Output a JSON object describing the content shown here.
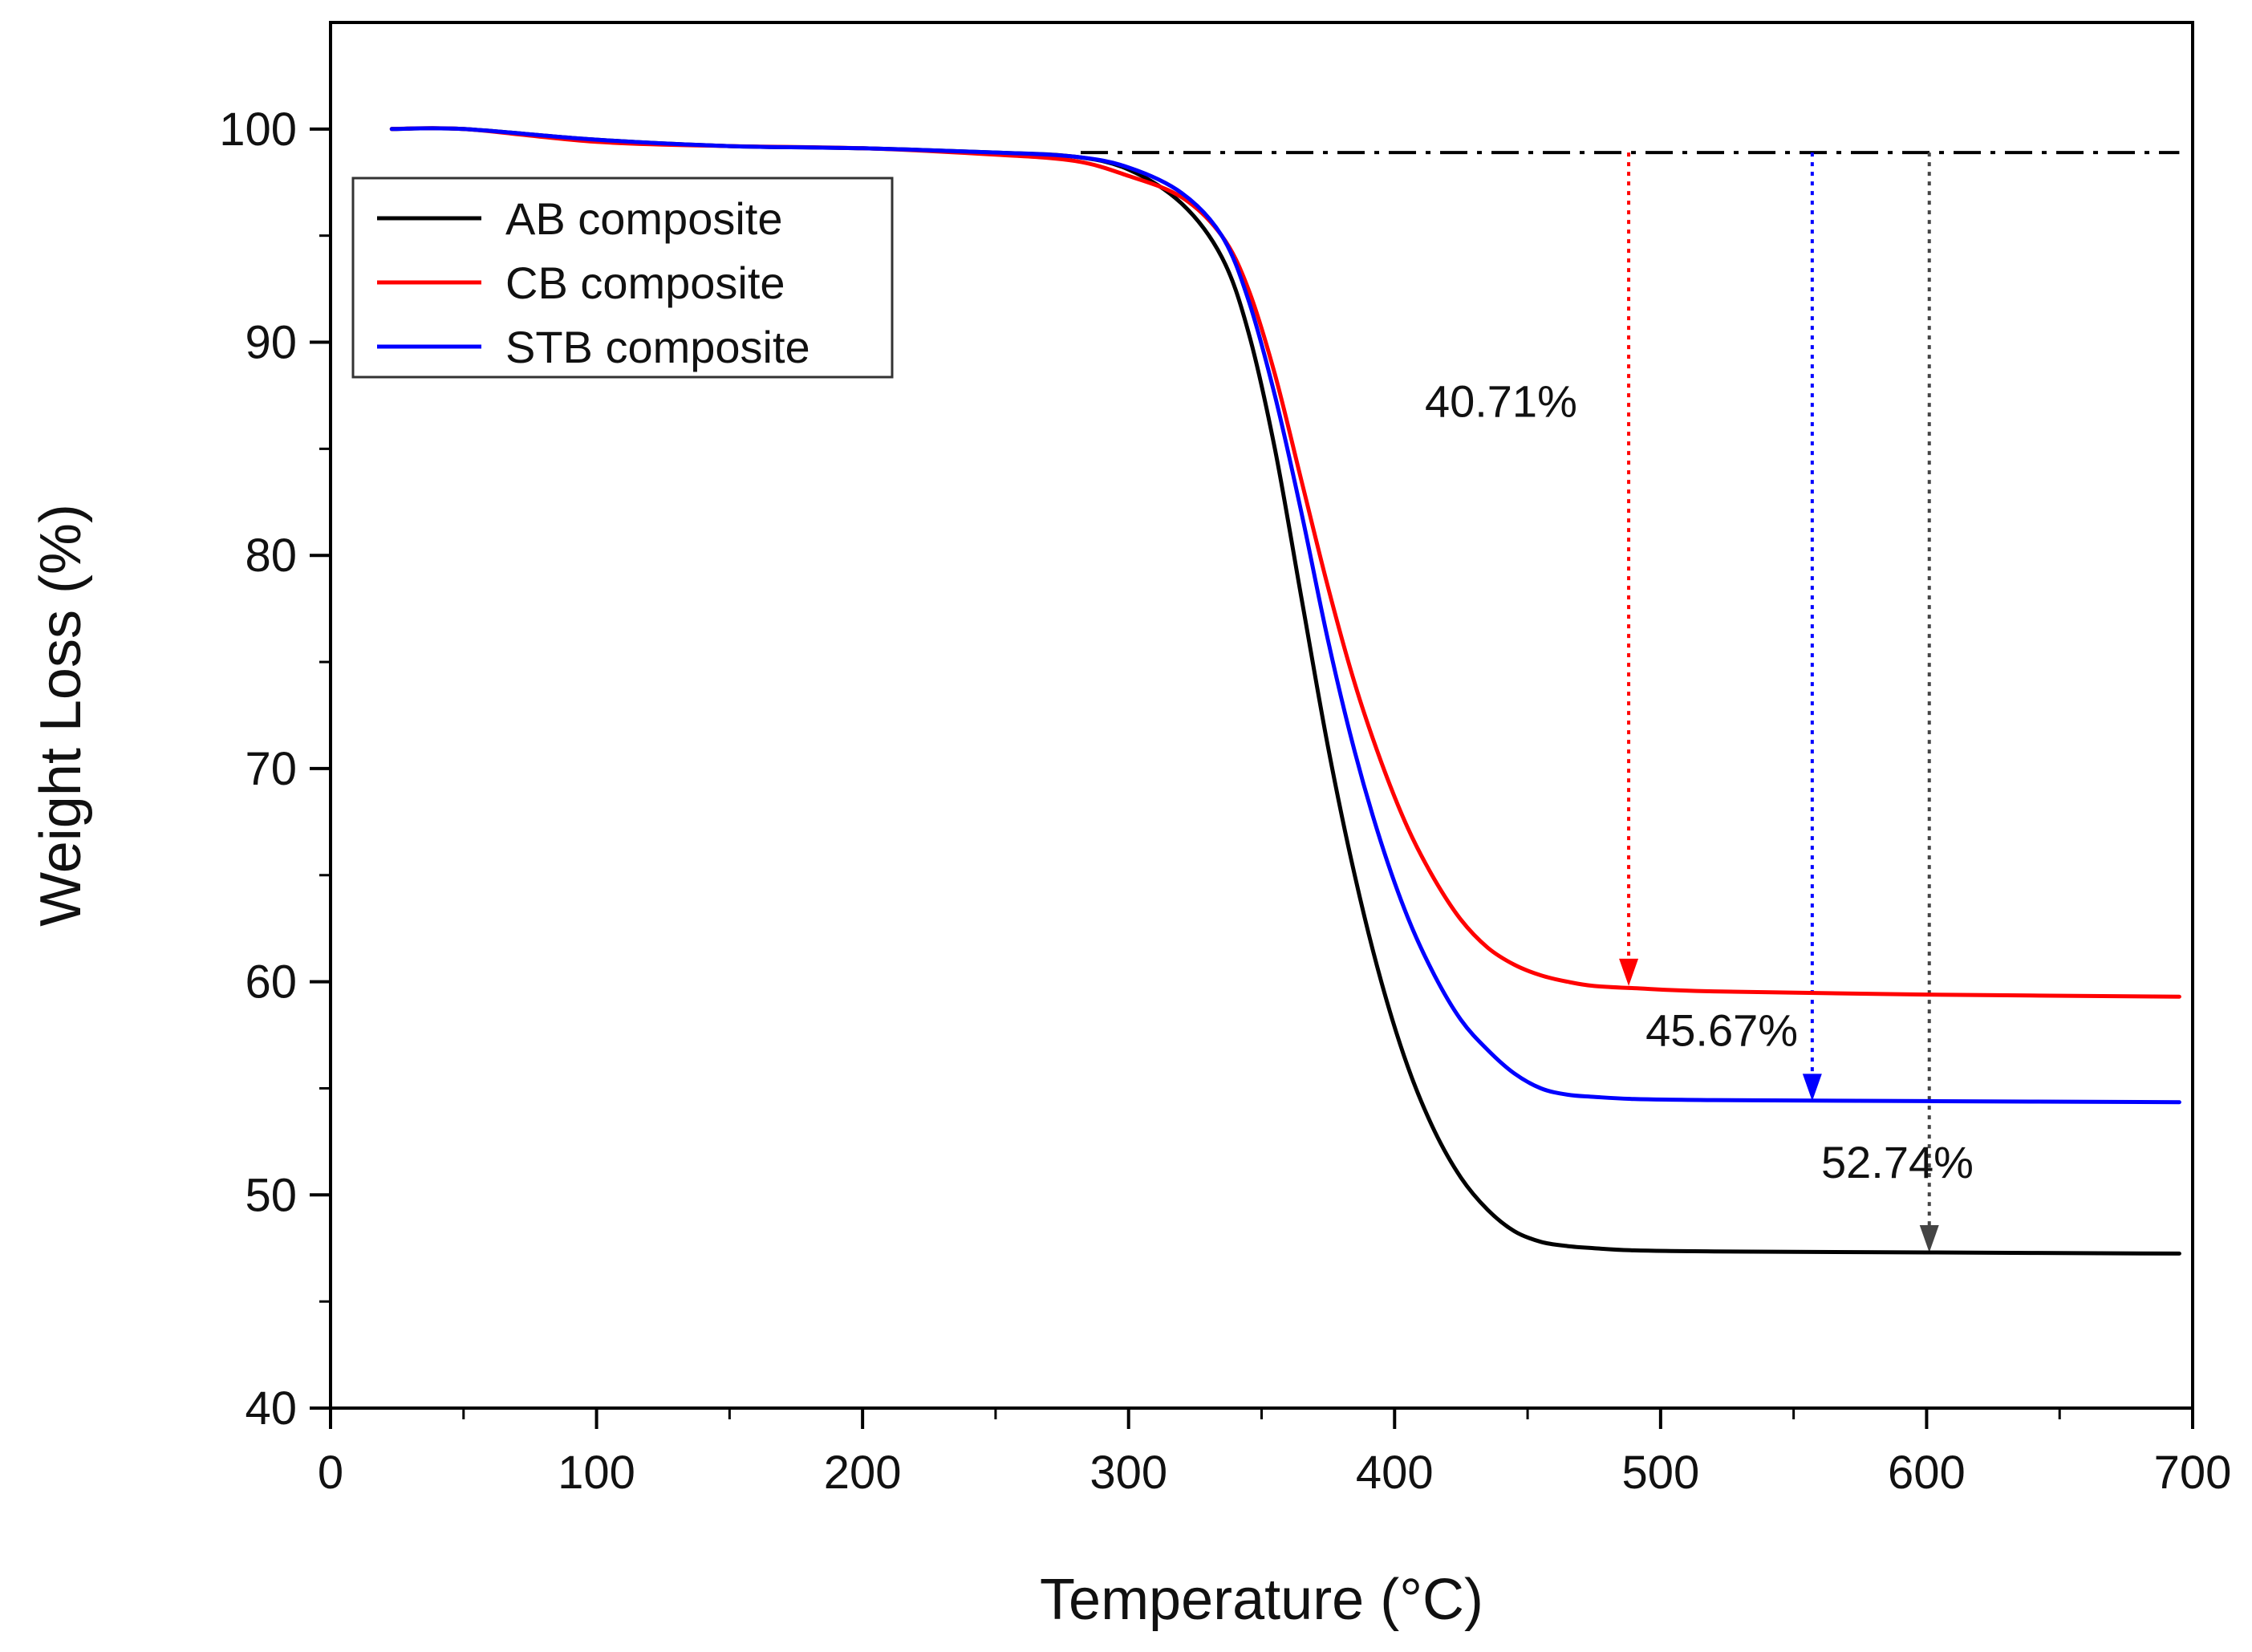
{
  "chart_data": {
    "type": "line",
    "title": "",
    "xlabel": "Temperature (°C)",
    "ylabel": "Weight Loss (%)",
    "xlim": [
      0,
      700
    ],
    "ylim": [
      40,
      105
    ],
    "x_ticks": [
      0,
      100,
      200,
      300,
      400,
      500,
      600,
      700
    ],
    "x_tick_labels": [
      "0",
      "100",
      "200",
      "300",
      "400",
      "500",
      "600",
      "700"
    ],
    "y_ticks": [
      40,
      50,
      60,
      70,
      80,
      90,
      100
    ],
    "y_tick_labels": [
      "40",
      "50",
      "60",
      "70",
      "80",
      "90",
      "100"
    ],
    "grid": false,
    "legend_position": "top-left",
    "series": [
      {
        "name": "AB composite",
        "color": "#000000",
        "x": [
          23,
          50,
          100,
          150,
          200,
          250,
          280,
          300,
          320,
          335,
          345,
          355,
          365,
          375,
          385,
          395,
          405,
          415,
          425,
          435,
          445,
          455,
          465,
          475,
          490,
          520,
          600,
          695
        ],
        "y": [
          100,
          100,
          99.5,
          99.2,
          99.1,
          98.9,
          98.7,
          98.1,
          96.5,
          94.0,
          90.5,
          85.0,
          78.0,
          71.0,
          65.0,
          60.0,
          56.0,
          53.0,
          50.8,
          49.3,
          48.3,
          47.8,
          47.6,
          47.5,
          47.4,
          47.35,
          47.3,
          47.25
        ]
      },
      {
        "name": "CB composite",
        "color": "#ff0000",
        "x": [
          23,
          50,
          100,
          150,
          200,
          250,
          280,
          300,
          320,
          335,
          345,
          355,
          365,
          375,
          385,
          395,
          405,
          415,
          425,
          435,
          445,
          455,
          465,
          475,
          490,
          520,
          600,
          695
        ],
        "y": [
          100,
          100,
          99.4,
          99.2,
          99.1,
          98.8,
          98.5,
          97.8,
          96.8,
          95.0,
          92.5,
          88.5,
          83.5,
          78.5,
          74.0,
          70.3,
          67.2,
          64.8,
          62.9,
          61.6,
          60.8,
          60.3,
          60.0,
          59.8,
          59.7,
          59.55,
          59.4,
          59.3
        ]
      },
      {
        "name": "STB composite",
        "color": "#0000ff",
        "x": [
          23,
          50,
          100,
          150,
          200,
          250,
          280,
          300,
          320,
          335,
          345,
          355,
          365,
          375,
          385,
          395,
          405,
          415,
          425,
          435,
          445,
          455,
          465,
          475,
          490,
          520,
          600,
          695
        ],
        "y": [
          100,
          100,
          99.5,
          99.2,
          99.1,
          98.9,
          98.7,
          98.2,
          97.0,
          95.0,
          92.0,
          87.5,
          82.0,
          76.0,
          70.8,
          66.5,
          63.0,
          60.3,
          58.2,
          56.8,
          55.7,
          55.0,
          54.7,
          54.6,
          54.5,
          54.45,
          54.4,
          54.35
        ]
      }
    ],
    "reference_line": {
      "y": 98.9,
      "x_start": 282,
      "x_end": 695,
      "color": "#000000",
      "style": "dash-dot"
    },
    "annotations": [
      {
        "label": "40.71%",
        "series": "CB composite",
        "color": "#ff0000",
        "arrow_x": 488,
        "arrow_y_top": 98.9,
        "arrow_y_bottom": 59.8,
        "label_x": 440,
        "label_y": 86.5
      },
      {
        "label": "45.67%",
        "series": "STB composite",
        "color": "#0000ff",
        "arrow_x": 557,
        "arrow_y_top": 98.9,
        "arrow_y_bottom": 54.4,
        "label_x": 523,
        "label_y": 57.0
      },
      {
        "label": "52.74%",
        "series": "AB composite",
        "color": "#444444",
        "arrow_x": 601,
        "arrow_y_top": 98.9,
        "arrow_y_bottom": 47.3,
        "label_x": 589,
        "label_y": 50.8
      }
    ]
  }
}
